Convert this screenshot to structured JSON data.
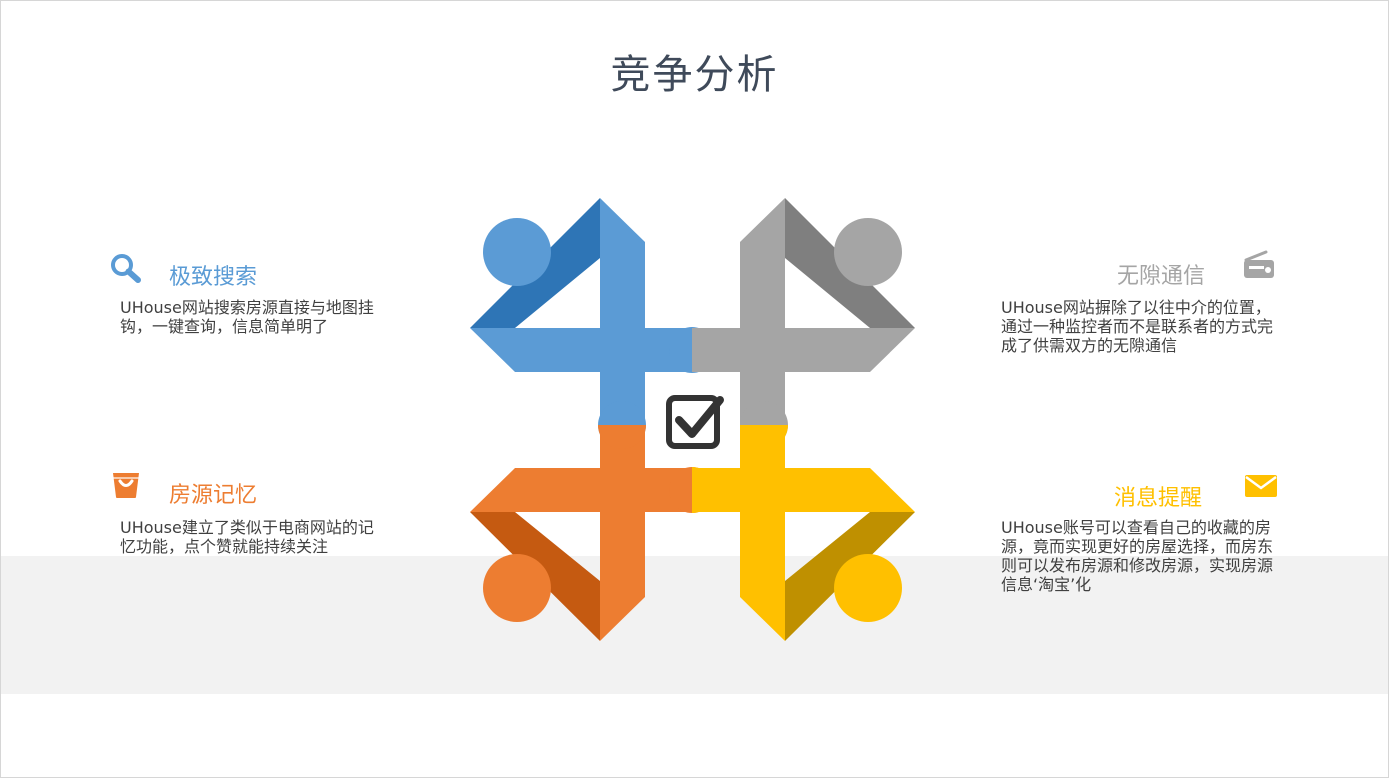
{
  "slide": {
    "title": "竞争分析"
  },
  "features": [
    {
      "id": "search",
      "title": "极致搜索",
      "description": "UHouse网站搜索房源直接与地图挂钩，一键查询，信息简单明了",
      "color": "#5a9bd5",
      "icon": "search-icon"
    },
    {
      "id": "communication",
      "title": "无隙通信",
      "description": "UHouse网站摒除了以往中介的位置，通过一种监控者而不是联系者的方式完成了供需双方的无隙通信",
      "color": "#a5a5a5",
      "icon": "radio-icon"
    },
    {
      "id": "memory",
      "title": "房源记忆",
      "description": "UHouse建立了类似于电商网站的记忆功能，点个赞就能持续关注",
      "color": "#ed7d31",
      "icon": "shopping-bag-icon"
    },
    {
      "id": "reminder",
      "title": "消息提醒",
      "description": "UHouse账号可以查看自己的收藏的房源，竟而实现更好的房屋选择，而房东则可以发布房源和修改房源，实现房源信息‘淘宝’化",
      "color": "#ffc000",
      "icon": "envelope-icon"
    }
  ],
  "center": {
    "icon": "checkbox-checked-icon"
  }
}
